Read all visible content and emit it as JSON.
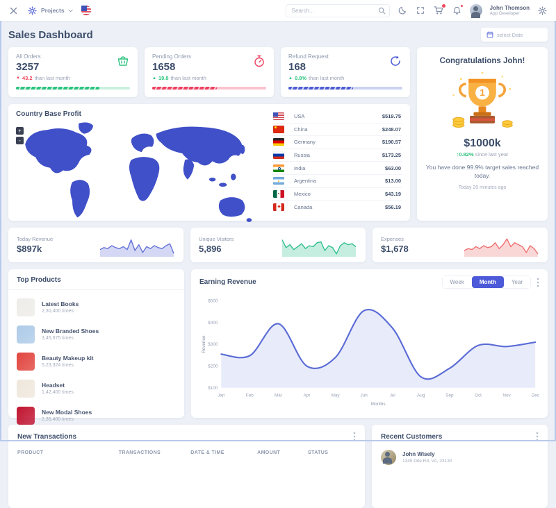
{
  "colors": {
    "accent": "#4c59d8",
    "green": "#2ac37e",
    "red": "#f0475f",
    "chart_line": "#5b6cd6",
    "title_text": "#3d4e6b",
    "muted_text": "#8d98ad",
    "map_fill": "#4050c8"
  },
  "icons": [
    "close-icon",
    "gear-icon",
    "us-flag-icon",
    "chevron-down-icon",
    "search-icon",
    "moon-icon",
    "fullscreen-icon",
    "cart-icon",
    "bell-icon",
    "settings-icon",
    "calendar-icon",
    "basket-icon",
    "stopwatch-icon",
    "refresh-icon",
    "trophy-illustration",
    "kebab-menu-icon",
    "zoom-in-icon",
    "zoom-out-icon"
  ],
  "navbar": {
    "menu_label": "Projects",
    "search_placeholder": "Search...",
    "user_name": "John Thomson",
    "user_role": "App Developer"
  },
  "page": {
    "title": "Sales Dashboard",
    "date_placeholder": "select Date"
  },
  "stats": [
    {
      "label": "All Orders",
      "value": "3257",
      "delta": "43.2",
      "delta_dir": "down",
      "delta_note": "than last month",
      "progress": 73,
      "color": "#2ac37e",
      "track": "#c9f0de"
    },
    {
      "label": "Pending Orders",
      "value": "1658",
      "delta": "19.8",
      "delta_dir": "up",
      "delta_note": "than last month",
      "progress": 57,
      "color": "#ef3f60",
      "track": "#fac4cf"
    },
    {
      "label": "Refund Request",
      "value": "168",
      "delta": "0.8%",
      "delta_dir": "up",
      "delta_note": "than last month",
      "progress": 57,
      "color": "#4c5bd4",
      "track": "#ccd2f1"
    }
  ],
  "congrats": {
    "title": "Congratulations John!",
    "amount": "$1000k",
    "delta": "0.82%",
    "delta_dir": "up",
    "delta_note": "since last year",
    "message": "You have done 99.9% target sales reached today.",
    "time": "Today 20 minutes ago"
  },
  "country_profit": {
    "title": "Country Base Profit",
    "zoom_in": "+",
    "zoom_out": "-",
    "countries": [
      {
        "name": "USA",
        "value": "$519.75",
        "flag": "us"
      },
      {
        "name": "China",
        "value": "$248.07",
        "flag": "cn"
      },
      {
        "name": "Germany",
        "value": "$190.57",
        "flag": "de"
      },
      {
        "name": "Russia",
        "value": "$173.25",
        "flag": "ru"
      },
      {
        "name": "India",
        "value": "$63.00",
        "flag": "in"
      },
      {
        "name": "Argentina",
        "value": "$13.00",
        "flag": "ar"
      },
      {
        "name": "Mexico",
        "value": "$43.19",
        "flag": "mx"
      },
      {
        "name": "Canada",
        "value": "$56.19",
        "flag": "ca"
      }
    ]
  },
  "mini_stats": [
    {
      "label": "Today Revenue",
      "value": "$897k",
      "color": "#6472d8",
      "spark": [
        3,
        4,
        3.5,
        5,
        4,
        3.5,
        4.5,
        3,
        8,
        2.5,
        5.5,
        1.5,
        4.5,
        3.5,
        5,
        4,
        3.5,
        5,
        6,
        1
      ]
    },
    {
      "label": "Unique Visitors",
      "value": "5,896",
      "color": "#2fbf8f",
      "spark": [
        8,
        4,
        5.5,
        3,
        4.5,
        6,
        3.5,
        5,
        4.5,
        6.5,
        7,
        2.5,
        5,
        4,
        0.8,
        5,
        6.5,
        5.5,
        6,
        4.5
      ]
    },
    {
      "label": "Expenses",
      "value": "$1,678",
      "color": "#ee6e6e",
      "spark": [
        2.5,
        3.5,
        3,
        4.5,
        3.5,
        5,
        4,
        4.5,
        6.5,
        3.5,
        5.5,
        8.5,
        4.5,
        6.5,
        5.5,
        4.5,
        1.5,
        5,
        3.5,
        0.8
      ]
    }
  ],
  "top_products": {
    "title": "Top Products",
    "items": [
      {
        "name": "Latest Books",
        "count": "2,30,400 times",
        "thumb": "#edece8"
      },
      {
        "name": "New Branded Shoes",
        "count": "3,45,675 times",
        "thumb": "#aecbe8"
      },
      {
        "name": "Beauty Makeup kit",
        "count": "5,23,324 times",
        "thumb": "#e2453f"
      },
      {
        "name": "Headset",
        "count": "1,42,400 times",
        "thumb": "#efe7dc"
      },
      {
        "name": "New Modal Shoes",
        "count": "2,35,400 times",
        "thumb": "#c11430"
      }
    ]
  },
  "earning": {
    "title": "Earning Revenue",
    "tabs": [
      "Week",
      "Month",
      "Year"
    ],
    "active_tab": "Month"
  },
  "chart_data": {
    "type": "area",
    "title": "Earning Revenue",
    "x": [
      "Jan",
      "Feb",
      "Mar",
      "Apr",
      "May",
      "Jun",
      "Jul",
      "Aug",
      "Sep",
      "Oct",
      "Nov",
      "Dec"
    ],
    "values": [
      255,
      248,
      395,
      200,
      240,
      455,
      375,
      150,
      190,
      295,
      290,
      310
    ],
    "xlabel": "Months",
    "ylabel": "Revenue",
    "ylim": [
      100,
      500
    ],
    "yticks": [
      100,
      200,
      300,
      400,
      500
    ],
    "ytick_labels": [
      "$100",
      "$200",
      "$300",
      "$400",
      "$500"
    ],
    "grid": false,
    "legend": "none",
    "line_color": "#5b6cd6",
    "fill_color": "#6577d9"
  },
  "transactions": {
    "title": "New Transactions",
    "headers": [
      "PRODUCT",
      "TRANSACTIONS",
      "DATE & TIME",
      "AMOUNT",
      "STATUS"
    ]
  },
  "recent_customers": {
    "title": "Recent Customers",
    "items": [
      {
        "name": "John Wisely",
        "address": "1345 Dite Rd, VA, 23130"
      }
    ]
  }
}
